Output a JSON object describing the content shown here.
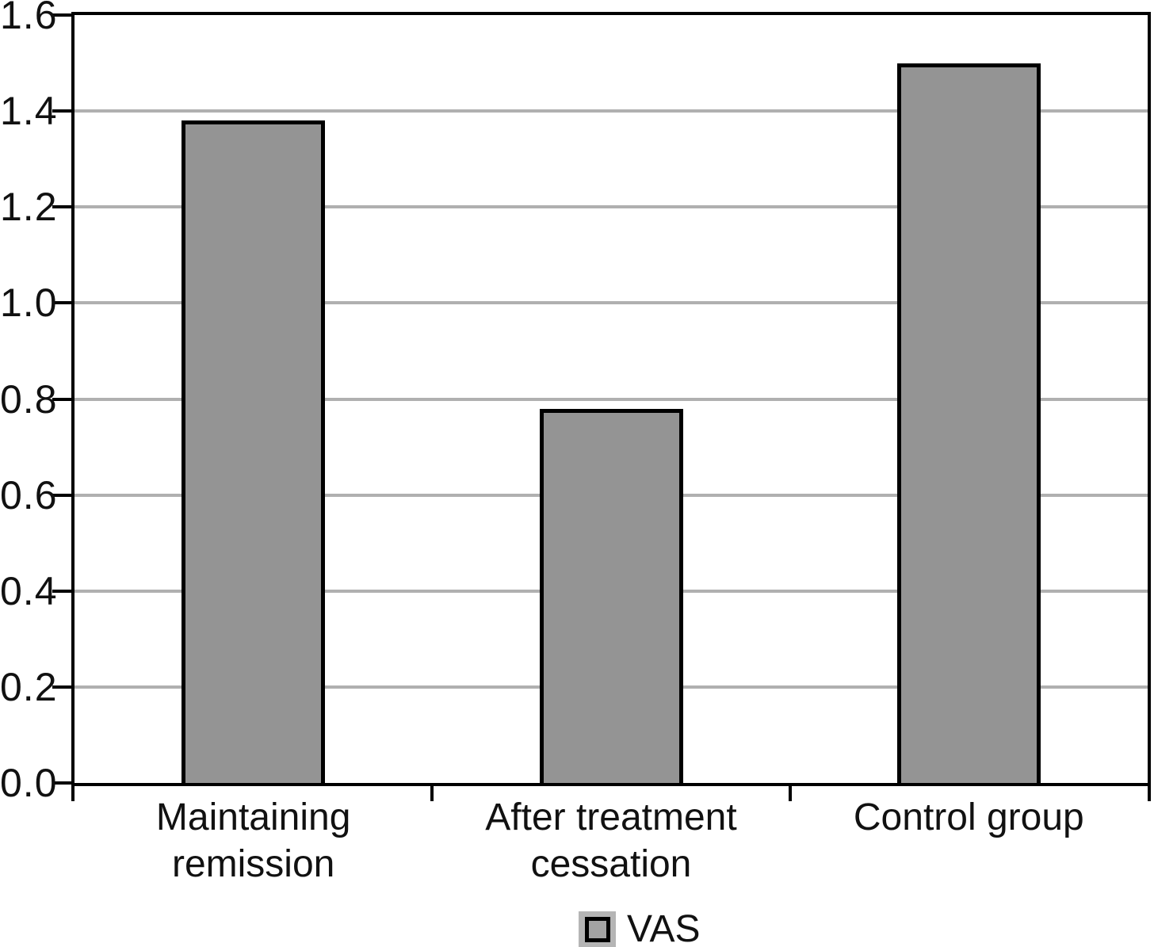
{
  "chart_data": {
    "type": "bar",
    "title": "",
    "xlabel": "",
    "ylabel": "",
    "categories": [
      [
        "Maintaining",
        "remission"
      ],
      [
        "After treatment",
        "cessation"
      ],
      [
        "Control group"
      ]
    ],
    "series": [
      {
        "name": "VAS",
        "values": [
          1.38,
          0.78,
          1.5
        ]
      }
    ],
    "ylim": [
      0,
      1.6
    ],
    "ytick_labels": [
      "0.0",
      "0.2",
      "0.4",
      "0.6",
      "0.8",
      "1.0",
      "1.2",
      "1.4",
      "1.6"
    ],
    "grid": true,
    "legend": {
      "position": "bottom-center",
      "entries": [
        {
          "label": "VAS"
        }
      ]
    }
  },
  "legend_label": "VAS",
  "colors": {
    "bar_fill": "#949494",
    "bar_border": "#000000",
    "gridline": "#b0b0b0",
    "axis": "#000000",
    "text": "#111111",
    "legend_patch_bg": "#b5b5b5",
    "legend_swatch_fill": "#a3a3a3",
    "background": "#ffffff"
  }
}
